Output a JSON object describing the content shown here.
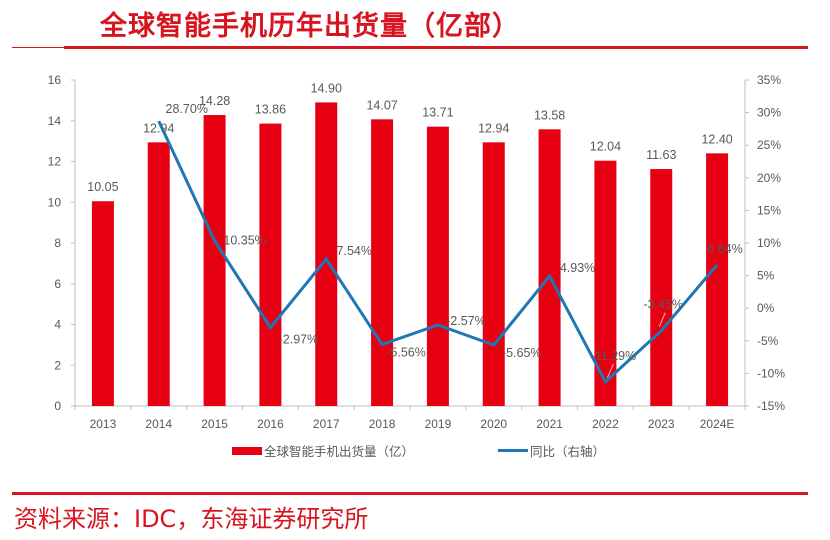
{
  "title": "全球智能手机历年出货量（亿部）",
  "source": "资料来源：IDC，东海证券研究所",
  "colors": {
    "accent": "#d7141f",
    "bar": "#e60012",
    "line": "#1f77b4",
    "text": "#595959",
    "axis": "#bfbfbf"
  },
  "chart_data": {
    "type": "bar+line",
    "categories": [
      "2013",
      "2014",
      "2015",
      "2016",
      "2017",
      "2018",
      "2019",
      "2020",
      "2021",
      "2022",
      "2023",
      "2024E"
    ],
    "series": [
      {
        "name": "全球智能手机出货量（亿）",
        "type": "bar",
        "axis": "left",
        "values": [
          10.05,
          12.94,
          14.28,
          13.86,
          14.9,
          14.07,
          13.71,
          12.94,
          13.58,
          12.04,
          11.63,
          12.4
        ],
        "labels": [
          "10.05",
          "12.94",
          "14.28",
          "13.86",
          "14.90",
          "14.07",
          "13.71",
          "12.94",
          "13.58",
          "12.04",
          "11.63",
          "12.40"
        ]
      },
      {
        "name": "同比（右轴）",
        "type": "line",
        "axis": "right",
        "values": [
          null,
          28.7,
          10.35,
          -2.97,
          7.54,
          -5.56,
          -2.57,
          -5.65,
          4.93,
          -11.29,
          -3.45,
          6.64
        ],
        "labels": [
          "",
          "28.70%",
          "10.35%",
          "-2.97%",
          "7.54%",
          "-5.56%",
          "-2.57%",
          "-5.65%",
          "4.93%",
          "-11.29%",
          "-3.45%",
          "6.64%"
        ]
      }
    ],
    "left_axis": {
      "ylim": [
        0,
        16
      ],
      "ticks": [
        "0",
        "2",
        "4",
        "6",
        "8",
        "10",
        "12",
        "14",
        "16"
      ]
    },
    "right_axis": {
      "ylim": [
        -15,
        35
      ],
      "ticks": [
        "-15%",
        "-10%",
        "-5%",
        "0%",
        "5%",
        "10%",
        "15%",
        "20%",
        "25%",
        "30%",
        "35%"
      ]
    },
    "grid": false,
    "legend": {
      "position": "bottom",
      "entries": [
        "全球智能手机出货量（亿）",
        "同比（右轴）"
      ]
    }
  }
}
